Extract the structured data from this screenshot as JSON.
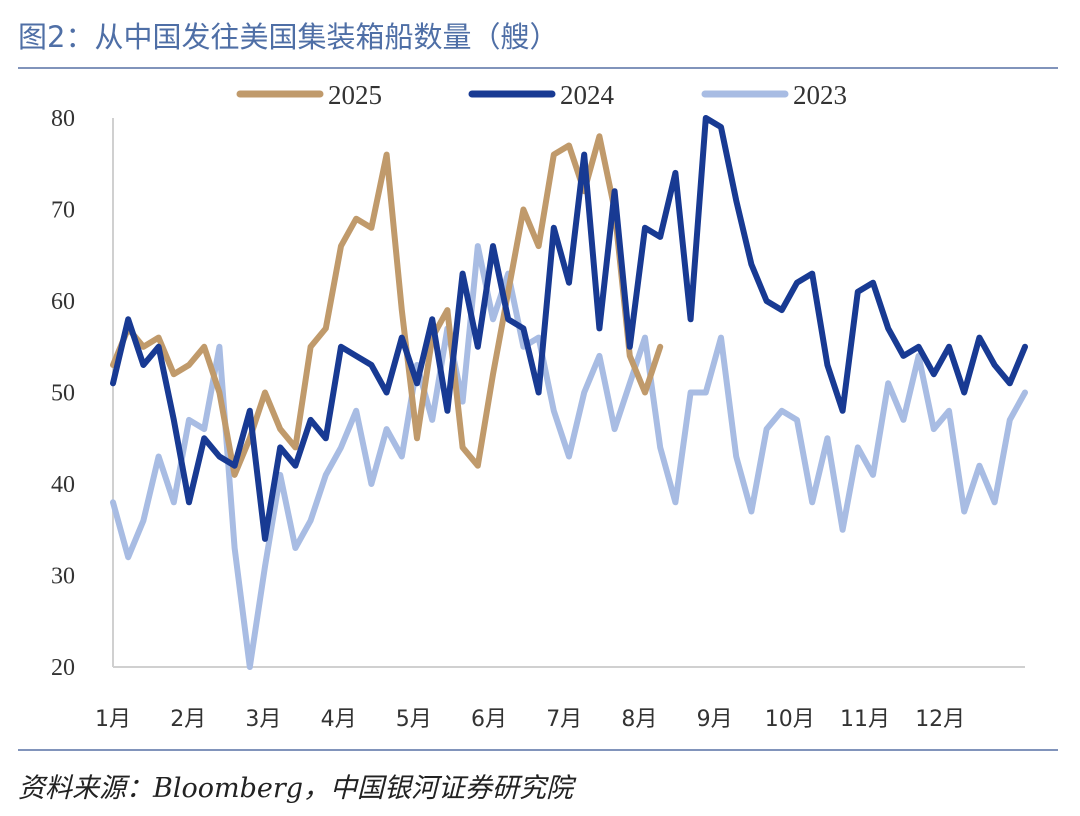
{
  "header": {
    "title": "图2：从中国发往美国集装箱船数量（艘）"
  },
  "footer": {
    "source": "资料来源：Bloomberg，中国银河证券研究院"
  },
  "chart_data": {
    "type": "line",
    "title": "图2：从中国发往美国集装箱船数量（艘）",
    "xlabel": "",
    "ylabel": "",
    "ylim": [
      20,
      80
    ],
    "xlim": [
      0,
      12
    ],
    "yticks": [
      20,
      30,
      40,
      50,
      60,
      70,
      80
    ],
    "month_labels": [
      "1月",
      "2月",
      "3月",
      "4月",
      "5月",
      "6月",
      "7月",
      "8月",
      "9月",
      "10月",
      "11月",
      "12月"
    ],
    "x_unit": "month (1月 = 0, 12月 = 11)",
    "grid": false,
    "legend_position": "top",
    "series": [
      {
        "name": "2025",
        "color": "#c09a6b",
        "x": [
          0,
          0.2,
          0.4,
          0.6,
          0.8,
          1.0,
          1.2,
          1.4,
          1.6,
          1.8,
          2.0,
          2.2,
          2.4,
          2.6,
          2.8,
          3.0,
          3.2,
          3.4,
          3.6,
          3.8,
          4.0,
          4.2,
          4.4,
          4.6,
          4.8,
          5.0,
          5.2,
          5.4,
          5.6,
          5.8,
          6.0,
          6.2,
          6.4,
          6.6,
          6.8,
          7.0,
          7.2
        ],
        "values": [
          53,
          57,
          55,
          56,
          52,
          53,
          55,
          50,
          41,
          45,
          50,
          46,
          44,
          55,
          57,
          66,
          69,
          68,
          76,
          59,
          45,
          56,
          59,
          44,
          42,
          52,
          61,
          70,
          66,
          76,
          77,
          72,
          78,
          70,
          54,
          50,
          55
        ]
      },
      {
        "name": "2024",
        "color": "#183a93",
        "x": [
          0,
          0.2,
          0.4,
          0.6,
          0.8,
          1.0,
          1.2,
          1.4,
          1.6,
          1.8,
          2.0,
          2.2,
          2.4,
          2.6,
          2.8,
          3.0,
          3.2,
          3.4,
          3.6,
          3.8,
          4.0,
          4.2,
          4.4,
          4.6,
          4.8,
          5.0,
          5.2,
          5.4,
          5.6,
          5.8,
          6.0,
          6.2,
          6.4,
          6.6,
          6.8,
          7.0,
          7.2,
          7.4,
          7.6,
          7.8,
          8.0,
          8.2,
          8.4,
          8.6,
          8.8,
          9.0,
          9.2,
          9.4,
          9.6,
          9.8,
          10.0,
          10.2,
          10.4,
          10.6,
          10.8,
          11.0,
          11.2,
          11.4,
          11.6,
          11.8,
          12.0
        ],
        "values": [
          51,
          58,
          53,
          55,
          47,
          38,
          45,
          43,
          42,
          48,
          34,
          44,
          42,
          47,
          45,
          55,
          54,
          53,
          50,
          56,
          51,
          58,
          48,
          63,
          55,
          66,
          58,
          57,
          50,
          68,
          62,
          76,
          57,
          72,
          55,
          68,
          67,
          74,
          58,
          80,
          79,
          71,
          64,
          60,
          59,
          62,
          63,
          53,
          48,
          61,
          62,
          57,
          54,
          55,
          52,
          55,
          50,
          56,
          53,
          51,
          55
        ]
      },
      {
        "name": "2023",
        "color": "#a8bce3",
        "x": [
          0,
          0.2,
          0.4,
          0.6,
          0.8,
          1.0,
          1.2,
          1.4,
          1.6,
          1.8,
          2.0,
          2.2,
          2.4,
          2.6,
          2.8,
          3.0,
          3.2,
          3.4,
          3.6,
          3.8,
          4.0,
          4.2,
          4.4,
          4.6,
          4.8,
          5.0,
          5.2,
          5.4,
          5.6,
          5.8,
          6.0,
          6.2,
          6.4,
          6.6,
          6.8,
          7.0,
          7.2,
          7.4,
          7.6,
          7.8,
          8.0,
          8.2,
          8.4,
          8.6,
          8.8,
          9.0,
          9.2,
          9.4,
          9.6,
          9.8,
          10.0,
          10.2,
          10.4,
          10.6,
          10.8,
          11.0,
          11.2,
          11.4,
          11.6,
          11.8,
          12.0
        ],
        "values": [
          38,
          32,
          36,
          43,
          38,
          47,
          46,
          55,
          33,
          20,
          31,
          41,
          33,
          36,
          41,
          44,
          48,
          40,
          46,
          43,
          53,
          47,
          57,
          49,
          66,
          58,
          63,
          55,
          56,
          48,
          43,
          50,
          54,
          46,
          51,
          56,
          44,
          38,
          50,
          50,
          56,
          43,
          37,
          46,
          48,
          47,
          38,
          45,
          35,
          44,
          41,
          51,
          47,
          54,
          46,
          48,
          37,
          42,
          38,
          47,
          50
        ]
      }
    ]
  }
}
